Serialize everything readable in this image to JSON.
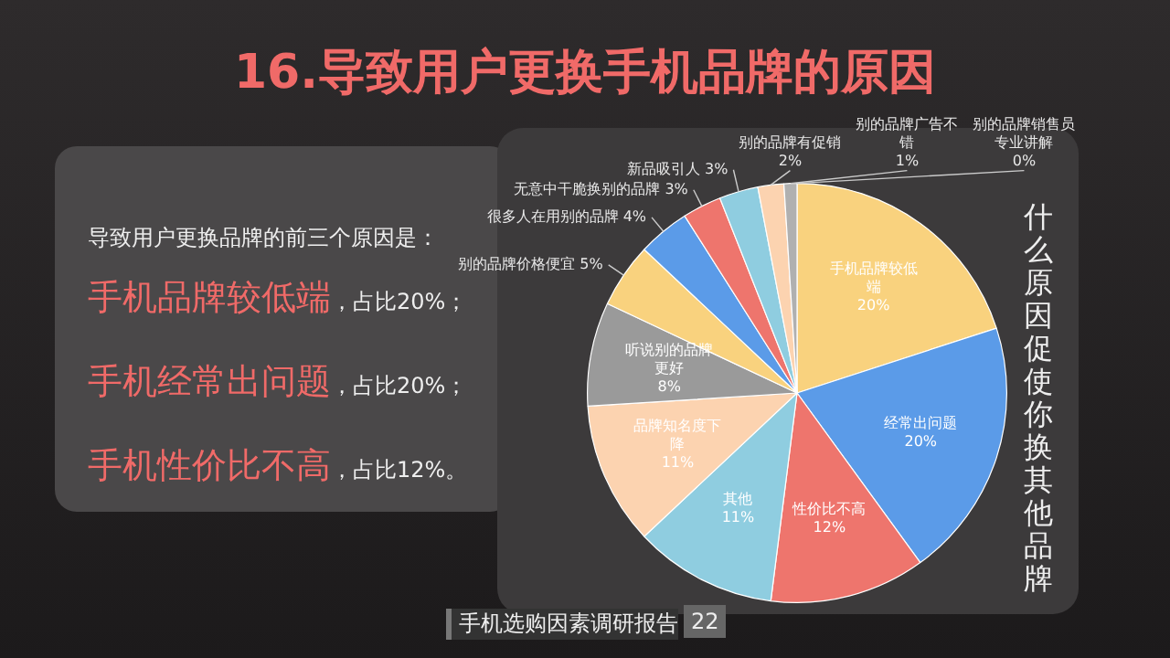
{
  "chart_data": {
    "type": "pie",
    "title": "16.导致用户更换手机品牌的原因",
    "categories": [
      "手机品牌较低端",
      "经常出问题",
      "性价比不高",
      "其他",
      "品牌知名度下降",
      "听说别的品牌更好",
      "别的品牌价格便宜",
      "很多人在用别的品牌",
      "无意中干脆换别的品牌",
      "新品吸引人",
      "别的品牌有促销",
      "别的品牌广告不错",
      "别的品牌销售员专业讲解"
    ],
    "values": [
      20,
      20,
      12,
      11,
      11,
      8,
      5,
      4,
      3,
      3,
      2,
      1,
      0
    ],
    "value_labels": [
      "20%",
      "20%",
      "12%",
      "11%",
      "11%",
      "8%",
      "5%",
      "4%",
      "3%",
      "3%",
      "2%",
      "1%",
      "0%"
    ],
    "colors": [
      "#f9d27e",
      "#5b9be8",
      "#ee756d",
      "#8fcde0",
      "#fcd3b0",
      "#9a9a9a",
      "#f9d27e",
      "#5b9be8",
      "#ee756d",
      "#8fcde0",
      "#fcd3b0",
      "#b0b0b0",
      "#9b59d9"
    ],
    "legend": false,
    "annotations": [
      "导致用户更换品牌的前三个原因是：",
      "手机品牌较低端，占比20%；",
      "手机经常出问题，占比20%；",
      "手机性价比不高，占比12%。",
      "什么原因促使你换其他品牌",
      "手机选购因素调研报告",
      "22"
    ]
  }
}
